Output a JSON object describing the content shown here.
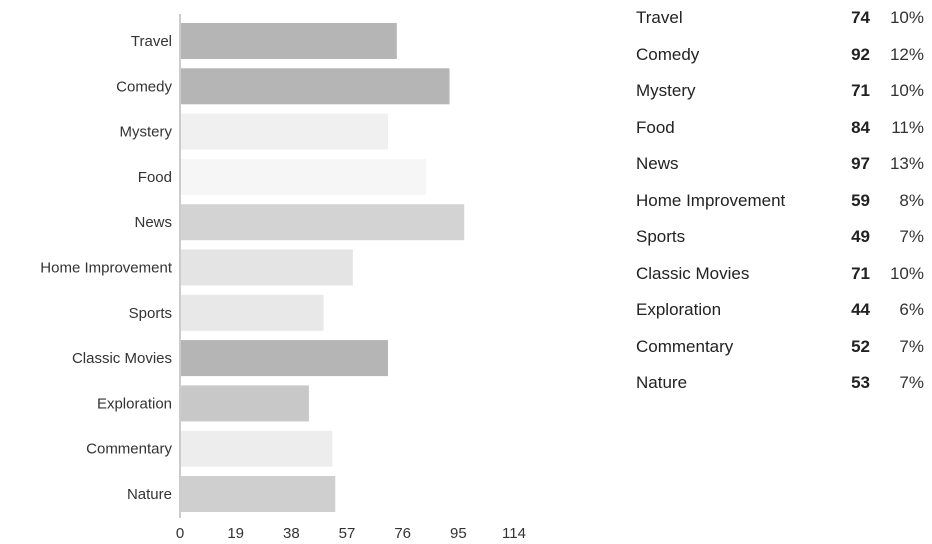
{
  "chart_data": {
    "type": "bar",
    "orientation": "horizontal",
    "categories": [
      "Travel",
      "Comedy",
      "Mystery",
      "Food",
      "News",
      "Home Improvement",
      "Sports",
      "Classic Movies",
      "Exploration",
      "Commentary",
      "Nature"
    ],
    "values": [
      74,
      92,
      71,
      84,
      97,
      59,
      49,
      71,
      44,
      52,
      53
    ],
    "percentages": [
      "10%",
      "12%",
      "10%",
      "11%",
      "13%",
      "8%",
      "7%",
      "10%",
      "6%",
      "7%",
      "7%"
    ],
    "bar_colors": [
      "#b5b5b5",
      "#b5b5b5",
      "#f0f0f0",
      "#f6f6f6",
      "#d3d3d3",
      "#e4e4e4",
      "#e8e8e8",
      "#b5b5b5",
      "#c8c8c8",
      "#ededed",
      "#cfcfcf"
    ],
    "x_ticks": [
      "0",
      "19",
      "38",
      "57",
      "76",
      "95",
      "114"
    ],
    "xlim": [
      0,
      114
    ],
    "title": "",
    "xlabel": "",
    "ylabel": "",
    "grid": false,
    "legend_position": "right"
  }
}
